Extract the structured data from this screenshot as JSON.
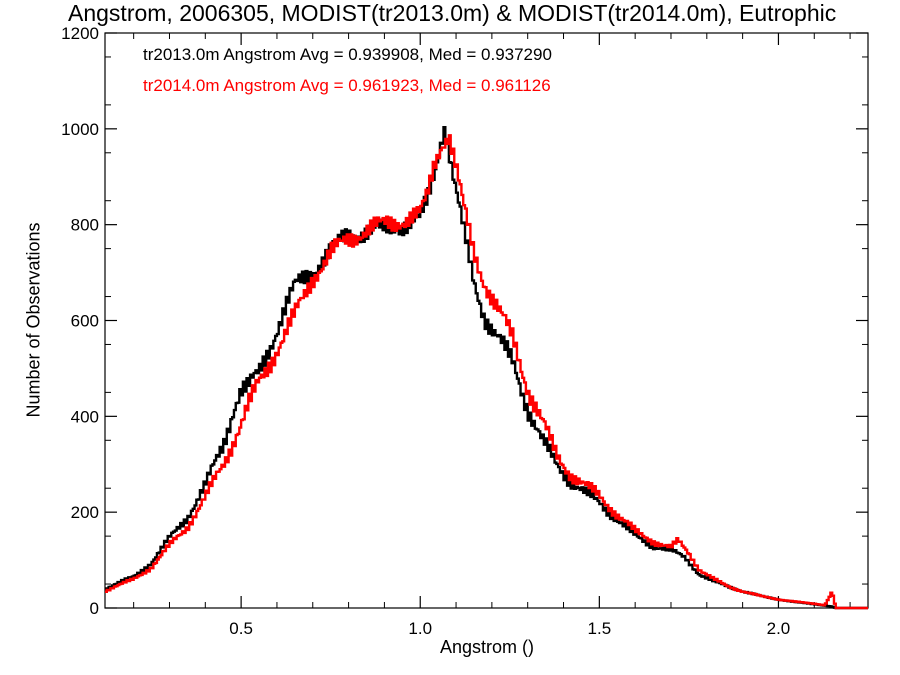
{
  "chart_data": {
    "type": "line",
    "title": "Angstrom, 2006305, MODIST(tr2013.0m) & MODIST(tr2014.0m), Eutrophic",
    "xlabel": "Angstrom ()",
    "ylabel": "Number of Observations",
    "xlim": [
      0.12,
      2.25
    ],
    "ylim": [
      0,
      1200
    ],
    "xticks": [
      0.5,
      1.0,
      1.5,
      2.0
    ],
    "xtick_labels": [
      "0.5",
      "1.0",
      "1.5",
      "2.0"
    ],
    "yticks": [
      0,
      200,
      400,
      600,
      800,
      1000,
      1200
    ],
    "ytick_labels": [
      "0",
      "200",
      "400",
      "600",
      "800",
      "1000",
      "1200"
    ],
    "step": "histogram",
    "grid": false,
    "annotations": [
      "tr2013.0m Angstrom Avg = 0.939908, Med = 0.937290",
      "tr2014.0m Angstrom Avg = 0.961923, Med = 0.961126"
    ],
    "series": [
      {
        "color": "#000000",
        "points": [
          [
            0.12,
            40
          ],
          [
            0.15,
            50
          ],
          [
            0.2,
            65
          ],
          [
            0.25,
            95
          ],
          [
            0.3,
            145
          ],
          [
            0.35,
            190
          ],
          [
            0.4,
            255
          ],
          [
            0.45,
            340
          ],
          [
            0.48,
            420
          ],
          [
            0.5,
            455
          ],
          [
            0.52,
            460
          ],
          [
            0.55,
            490
          ],
          [
            0.58,
            545
          ],
          [
            0.62,
            620
          ],
          [
            0.65,
            670
          ],
          [
            0.7,
            705
          ],
          [
            0.75,
            745
          ],
          [
            0.8,
            780
          ],
          [
            0.85,
            785
          ],
          [
            0.9,
            790
          ],
          [
            0.95,
            800
          ],
          [
            1.0,
            810
          ],
          [
            1.02,
            850
          ],
          [
            1.04,
            910
          ],
          [
            1.06,
            985
          ],
          [
            1.07,
            1010
          ],
          [
            1.09,
            910
          ],
          [
            1.12,
            790
          ],
          [
            1.15,
            680
          ],
          [
            1.18,
            610
          ],
          [
            1.22,
            560
          ],
          [
            1.26,
            510
          ],
          [
            1.3,
            420
          ],
          [
            1.34,
            350
          ],
          [
            1.38,
            300
          ],
          [
            1.42,
            265
          ],
          [
            1.46,
            240
          ],
          [
            1.5,
            220
          ],
          [
            1.55,
            185
          ],
          [
            1.6,
            150
          ],
          [
            1.65,
            130
          ],
          [
            1.7,
            120
          ],
          [
            1.74,
            105
          ],
          [
            1.78,
            70
          ],
          [
            1.82,
            55
          ],
          [
            1.86,
            45
          ],
          [
            1.9,
            35
          ],
          [
            1.95,
            25
          ],
          [
            2.0,
            18
          ],
          [
            2.05,
            12
          ],
          [
            2.1,
            8
          ],
          [
            2.13,
            5
          ],
          [
            2.15,
            3
          ],
          [
            2.16,
            0
          ],
          [
            2.25,
            0
          ]
        ]
      },
      {
        "color": "#ff0000",
        "points": [
          [
            0.12,
            35
          ],
          [
            0.15,
            45
          ],
          [
            0.2,
            60
          ],
          [
            0.25,
            85
          ],
          [
            0.3,
            130
          ],
          [
            0.35,
            170
          ],
          [
            0.4,
            230
          ],
          [
            0.45,
            300
          ],
          [
            0.5,
            385
          ],
          [
            0.52,
            420
          ],
          [
            0.55,
            470
          ],
          [
            0.6,
            540
          ],
          [
            0.65,
            610
          ],
          [
            0.7,
            690
          ],
          [
            0.75,
            740
          ],
          [
            0.8,
            770
          ],
          [
            0.85,
            790
          ],
          [
            0.9,
            800
          ],
          [
            0.95,
            810
          ],
          [
            1.0,
            820
          ],
          [
            1.02,
            860
          ],
          [
            1.04,
            930
          ],
          [
            1.06,
            970
          ],
          [
            1.08,
            990
          ],
          [
            1.1,
            920
          ],
          [
            1.12,
            840
          ],
          [
            1.15,
            740
          ],
          [
            1.18,
            680
          ],
          [
            1.22,
            620
          ],
          [
            1.26,
            560
          ],
          [
            1.3,
            460
          ],
          [
            1.34,
            390
          ],
          [
            1.38,
            320
          ],
          [
            1.42,
            280
          ],
          [
            1.46,
            255
          ],
          [
            1.5,
            235
          ],
          [
            1.55,
            195
          ],
          [
            1.6,
            160
          ],
          [
            1.65,
            140
          ],
          [
            1.7,
            125
          ],
          [
            1.72,
            140
          ],
          [
            1.75,
            115
          ],
          [
            1.78,
            80
          ],
          [
            1.82,
            60
          ],
          [
            1.86,
            45
          ],
          [
            1.9,
            35
          ],
          [
            1.95,
            25
          ],
          [
            2.0,
            18
          ],
          [
            2.05,
            13
          ],
          [
            2.1,
            9
          ],
          [
            2.13,
            6
          ],
          [
            2.15,
            35
          ],
          [
            2.16,
            0
          ],
          [
            2.25,
            0
          ]
        ]
      }
    ]
  }
}
